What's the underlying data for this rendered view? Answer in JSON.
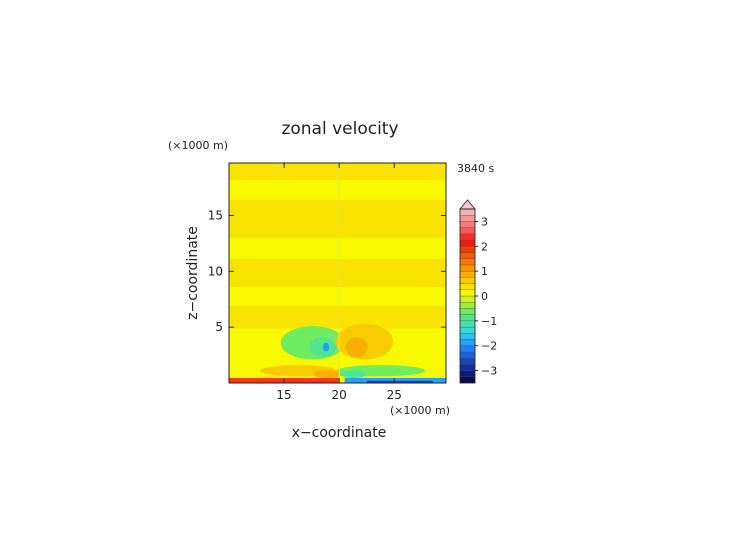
{
  "chart_data": {
    "type": "heatmap",
    "title": "zonal velocity",
    "time_label": "3840 s",
    "xlabel": "x−coordinate",
    "ylabel": "z−coordinate",
    "x_unit": "(×1000 m)",
    "y_unit": "(×1000 m)",
    "xlim": [
      10,
      29.7
    ],
    "ylim": [
      0,
      19.7
    ],
    "xticks": [
      15,
      20,
      25
    ],
    "yticks": [
      5,
      10,
      15
    ],
    "grid": false,
    "colorbar": {
      "position": "right",
      "extend_max": true,
      "levels": [
        -3.5,
        -3.25,
        -3,
        -2.75,
        -2.5,
        -2.25,
        -2,
        -1.75,
        -1.5,
        -1.25,
        -1,
        -0.75,
        -0.5,
        -0.25,
        0,
        0.25,
        0.5,
        0.75,
        1,
        1.25,
        1.5,
        1.75,
        2,
        2.25,
        2.5,
        2.75,
        3,
        3.25,
        3.5
      ],
      "colors": [
        "#0a0a55",
        "#0d1a80",
        "#1030a8",
        "#1446c8",
        "#1a60e0",
        "#2480f0",
        "#2aa0f5",
        "#30c0f0",
        "#38d8d8",
        "#40e0b0",
        "#50e690",
        "#70ec60",
        "#a0f030",
        "#d0f418",
        "#f8f800",
        "#f8e400",
        "#f8cc00",
        "#f8b000",
        "#f89600",
        "#f87a00",
        "#f85a00",
        "#f83a00",
        "#f81800",
        "#f03030",
        "#f05a5a",
        "#f07c7c",
        "#f09a9a",
        "#f4b4b4"
      ],
      "extend_color": "#f8c8c8",
      "tick_values": [
        3,
        2,
        1,
        0,
        -1,
        -2,
        -3
      ],
      "tick_labels": [
        "3",
        "2",
        "1",
        "0",
        "−1",
        "−2",
        "−3"
      ]
    },
    "field_regions": [
      {
        "kind": "band",
        "z": [
          16.4,
          18.2
        ],
        "value": 0.15,
        "x": [
          10,
          29.7
        ]
      },
      {
        "kind": "band",
        "z": [
          11.1,
          13.0
        ],
        "value": 0.15,
        "x": [
          10,
          29.7
        ]
      },
      {
        "kind": "band",
        "z": [
          6.9,
          8.6
        ],
        "value": 0.15,
        "x": [
          10,
          29.7
        ]
      },
      {
        "kind": "band",
        "z": [
          0,
          4.9
        ],
        "value": 0.1,
        "x": [
          10,
          29.7
        ]
      },
      {
        "kind": "blob",
        "center": [
          17.6,
          3.6
        ],
        "radius": [
          2.9,
          1.5
        ],
        "value": -0.6
      },
      {
        "kind": "blob",
        "center": [
          18.5,
          3.2
        ],
        "radius": [
          1.2,
          0.9
        ],
        "value": -0.9
      },
      {
        "kind": "blob",
        "center": [
          18.8,
          3.2
        ],
        "radius": [
          0.3,
          0.4
        ],
        "value": -1.8
      },
      {
        "kind": "blob",
        "center": [
          22.3,
          3.7
        ],
        "radius": [
          2.6,
          1.6
        ],
        "value": 0.6
      },
      {
        "kind": "blob",
        "center": [
          21.6,
          3.2
        ],
        "radius": [
          1.0,
          0.9
        ],
        "value": 0.9
      },
      {
        "kind": "blob",
        "center": [
          16.3,
          1.1
        ],
        "radius": [
          3.5,
          0.5
        ],
        "value": 0.55
      },
      {
        "kind": "blob",
        "center": [
          19.0,
          0.8
        ],
        "radius": [
          1.4,
          0.35
        ],
        "value": 0.9
      },
      {
        "kind": "blob",
        "center": [
          23.8,
          1.1
        ],
        "radius": [
          4.0,
          0.5
        ],
        "value": -0.55
      },
      {
        "kind": "blob",
        "center": [
          21.3,
          0.8
        ],
        "radius": [
          1.2,
          0.35
        ],
        "value": -0.9
      },
      {
        "kind": "band",
        "z": [
          0,
          0.45
        ],
        "value": 1.8,
        "x": [
          10,
          20
        ]
      },
      {
        "kind": "band",
        "z": [
          0,
          0.2
        ],
        "value": 2.4,
        "x": [
          13,
          19
        ]
      },
      {
        "kind": "band",
        "z": [
          0,
          0.45
        ],
        "value": -1.8,
        "x": [
          20.5,
          29.7
        ]
      },
      {
        "kind": "band",
        "z": [
          0,
          0.2
        ],
        "value": -2.6,
        "x": [
          22.5,
          28.5
        ]
      }
    ]
  }
}
